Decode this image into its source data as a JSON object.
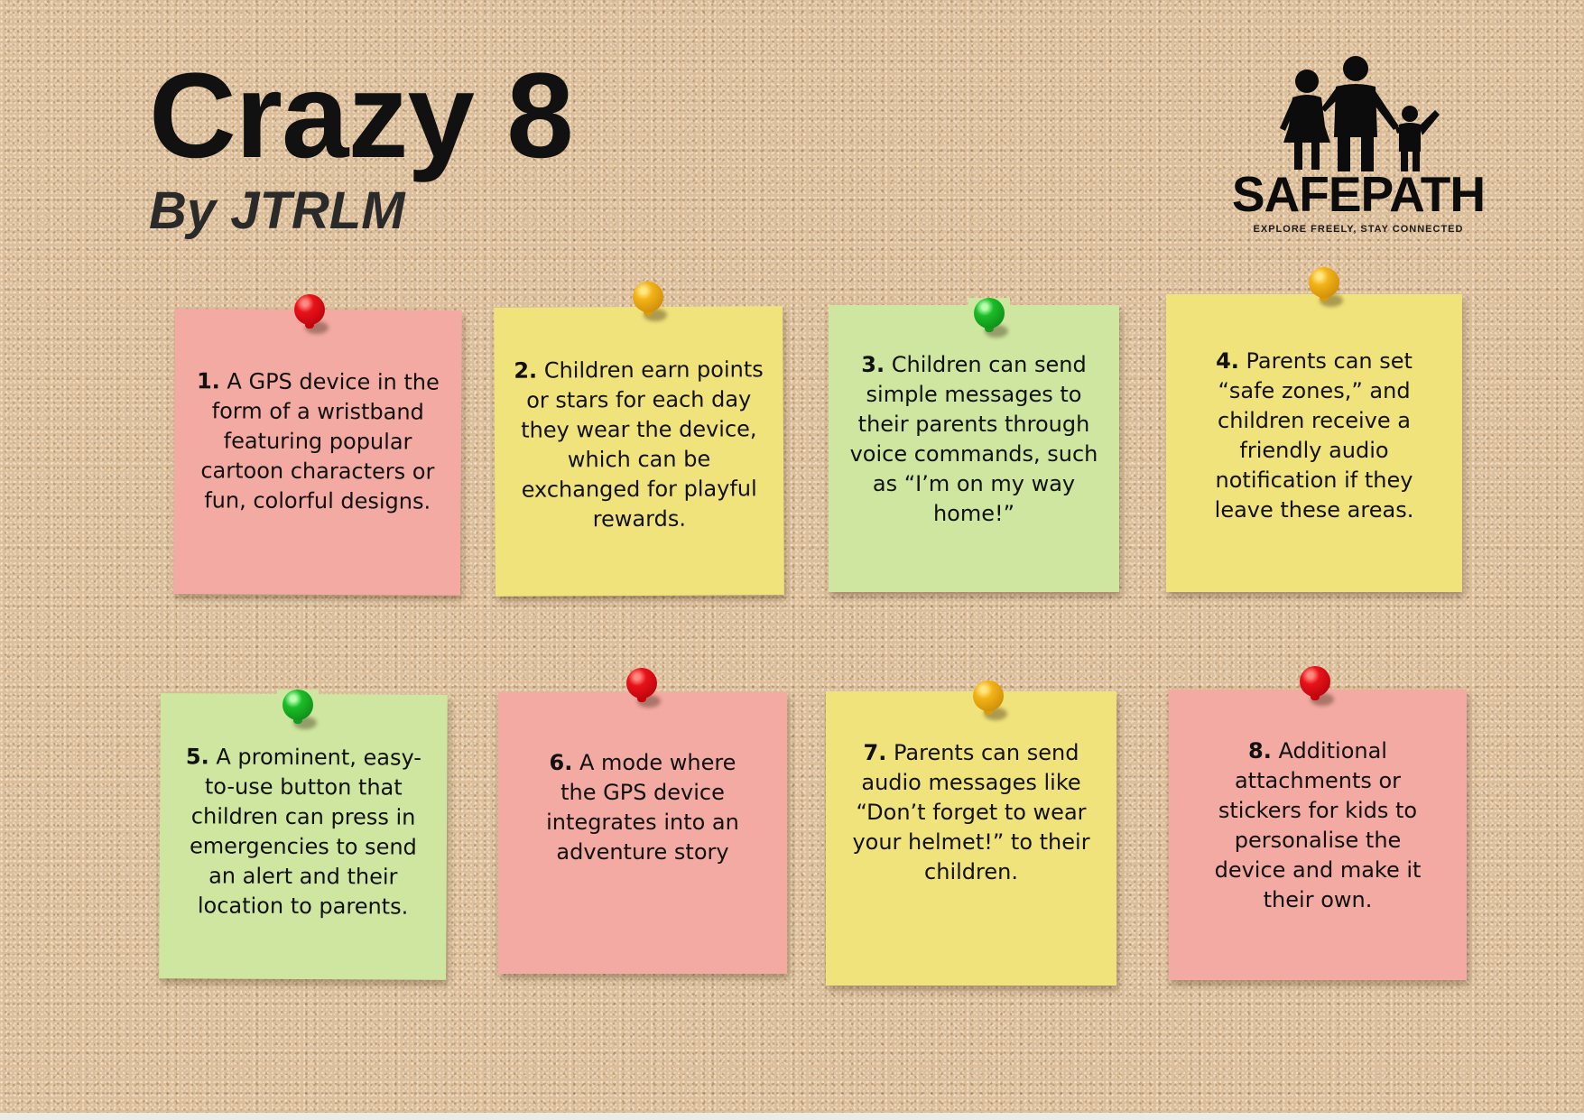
{
  "header": {
    "title": "Crazy 8",
    "subtitle": "By JTRLM"
  },
  "logo": {
    "name": "SAFEPATH",
    "tagline": "EXPLORE FREELY, STAY CONNECTED",
    "icon": "family-icon"
  },
  "colors": {
    "pink_note": "#f2aaa2",
    "yellow_note": "#f1e37b",
    "green_note": "#cfe6a0",
    "cork": "#dcbf9a"
  },
  "notes": [
    {
      "number": "1.",
      "text": "A GPS device in the form of a wristband featuring popular cartoon characters or fun, colorful designs.",
      "color": "pink",
      "pin": "red"
    },
    {
      "number": "2.",
      "text": "Children earn points or stars for each day they wear the device, which can be exchanged for playful rewards.",
      "color": "yellow",
      "pin": "orange"
    },
    {
      "number": "3.",
      "text": "Children can send simple messages to their parents through voice commands, such as “I’m on my way home!”",
      "color": "green",
      "pin": "green"
    },
    {
      "number": "4.",
      "text": "Parents can set “safe zones,” and children receive a friendly audio notification if they leave these areas.",
      "color": "yellow",
      "pin": "orange"
    },
    {
      "number": "5.",
      "text": "A prominent, easy-to-use button that children can press in emergencies to send an alert and their location to parents.",
      "color": "green",
      "pin": "green"
    },
    {
      "number": "6.",
      "text": "A mode where the GPS device integrates into an adventure story",
      "color": "pink",
      "pin": "red"
    },
    {
      "number": "7.",
      "text": "Parents can send audio messages like “Don’t forget to wear your helmet!” to their children.",
      "color": "yellow",
      "pin": "orange"
    },
    {
      "number": "8.",
      "text": "Additional attachments or stickers for kids to personalise the device and make it their own.",
      "color": "pink",
      "pin": "red"
    }
  ]
}
